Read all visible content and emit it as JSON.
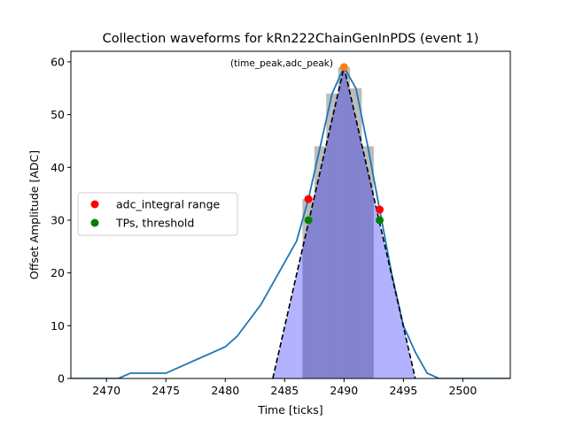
{
  "chart_data": {
    "type": "line",
    "title": "Collection waveforms for kRn222ChainGenInPDS (event 1)",
    "xlabel": "Time [ticks]",
    "ylabel": "Offset Amplitude [ADC]",
    "xlim": [
      2467,
      2504
    ],
    "ylim": [
      0,
      62
    ],
    "xticks": [
      2470,
      2475,
      2480,
      2485,
      2490,
      2495,
      2500
    ],
    "yticks": [
      0,
      10,
      20,
      30,
      40,
      50,
      60
    ],
    "grid": false,
    "legend_position": "center-left",
    "waveform": {
      "color": "#1f77b4",
      "x": [
        2467,
        2468,
        2469,
        2470,
        2471,
        2472,
        2473,
        2474,
        2475,
        2476,
        2477,
        2478,
        2479,
        2480,
        2481,
        2482,
        2483,
        2484,
        2485,
        2486,
        2487,
        2488,
        2489,
        2490,
        2491,
        2492,
        2493,
        2494,
        2495,
        2496,
        2497,
        2498,
        2499,
        2500,
        2501,
        2502,
        2503,
        2504
      ],
      "y": [
        0,
        0,
        0,
        0,
        0,
        1,
        1,
        1,
        1,
        2,
        3,
        4,
        5,
        6,
        8,
        11,
        14,
        18,
        22,
        26,
        34,
        44,
        54,
        59,
        55,
        44,
        32,
        20,
        10,
        5,
        1,
        0,
        0,
        0,
        0,
        0,
        0,
        0
      ]
    },
    "shaded_bars": {
      "color": "#b0b0b0",
      "x": [
        2487,
        2488,
        2489,
        2490,
        2491,
        2492
      ],
      "y": [
        34,
        44,
        54,
        59,
        55,
        44
      ]
    },
    "triangle_fit": {
      "color": "#000000",
      "style": "dashed",
      "x": [
        2484,
        2490,
        2496
      ],
      "y": [
        0,
        59,
        0
      ]
    },
    "triangle_fill": {
      "color": "#0000ff",
      "opacity": 0.3,
      "x": [
        2484,
        2490,
        2496
      ],
      "y": [
        0,
        59,
        0
      ]
    },
    "peak_marker": {
      "label": "(time_peak,adc_peak)",
      "x": 2490,
      "y": 59,
      "color": "#ff7f0e"
    },
    "series": [
      {
        "name": "adc_integral range",
        "color": "#ff0000",
        "x": [
          2487,
          2493
        ],
        "y": [
          34,
          32
        ]
      },
      {
        "name": "TPs, threshold",
        "color": "#008000",
        "x": [
          2487,
          2493
        ],
        "y": [
          30,
          30
        ]
      }
    ]
  }
}
